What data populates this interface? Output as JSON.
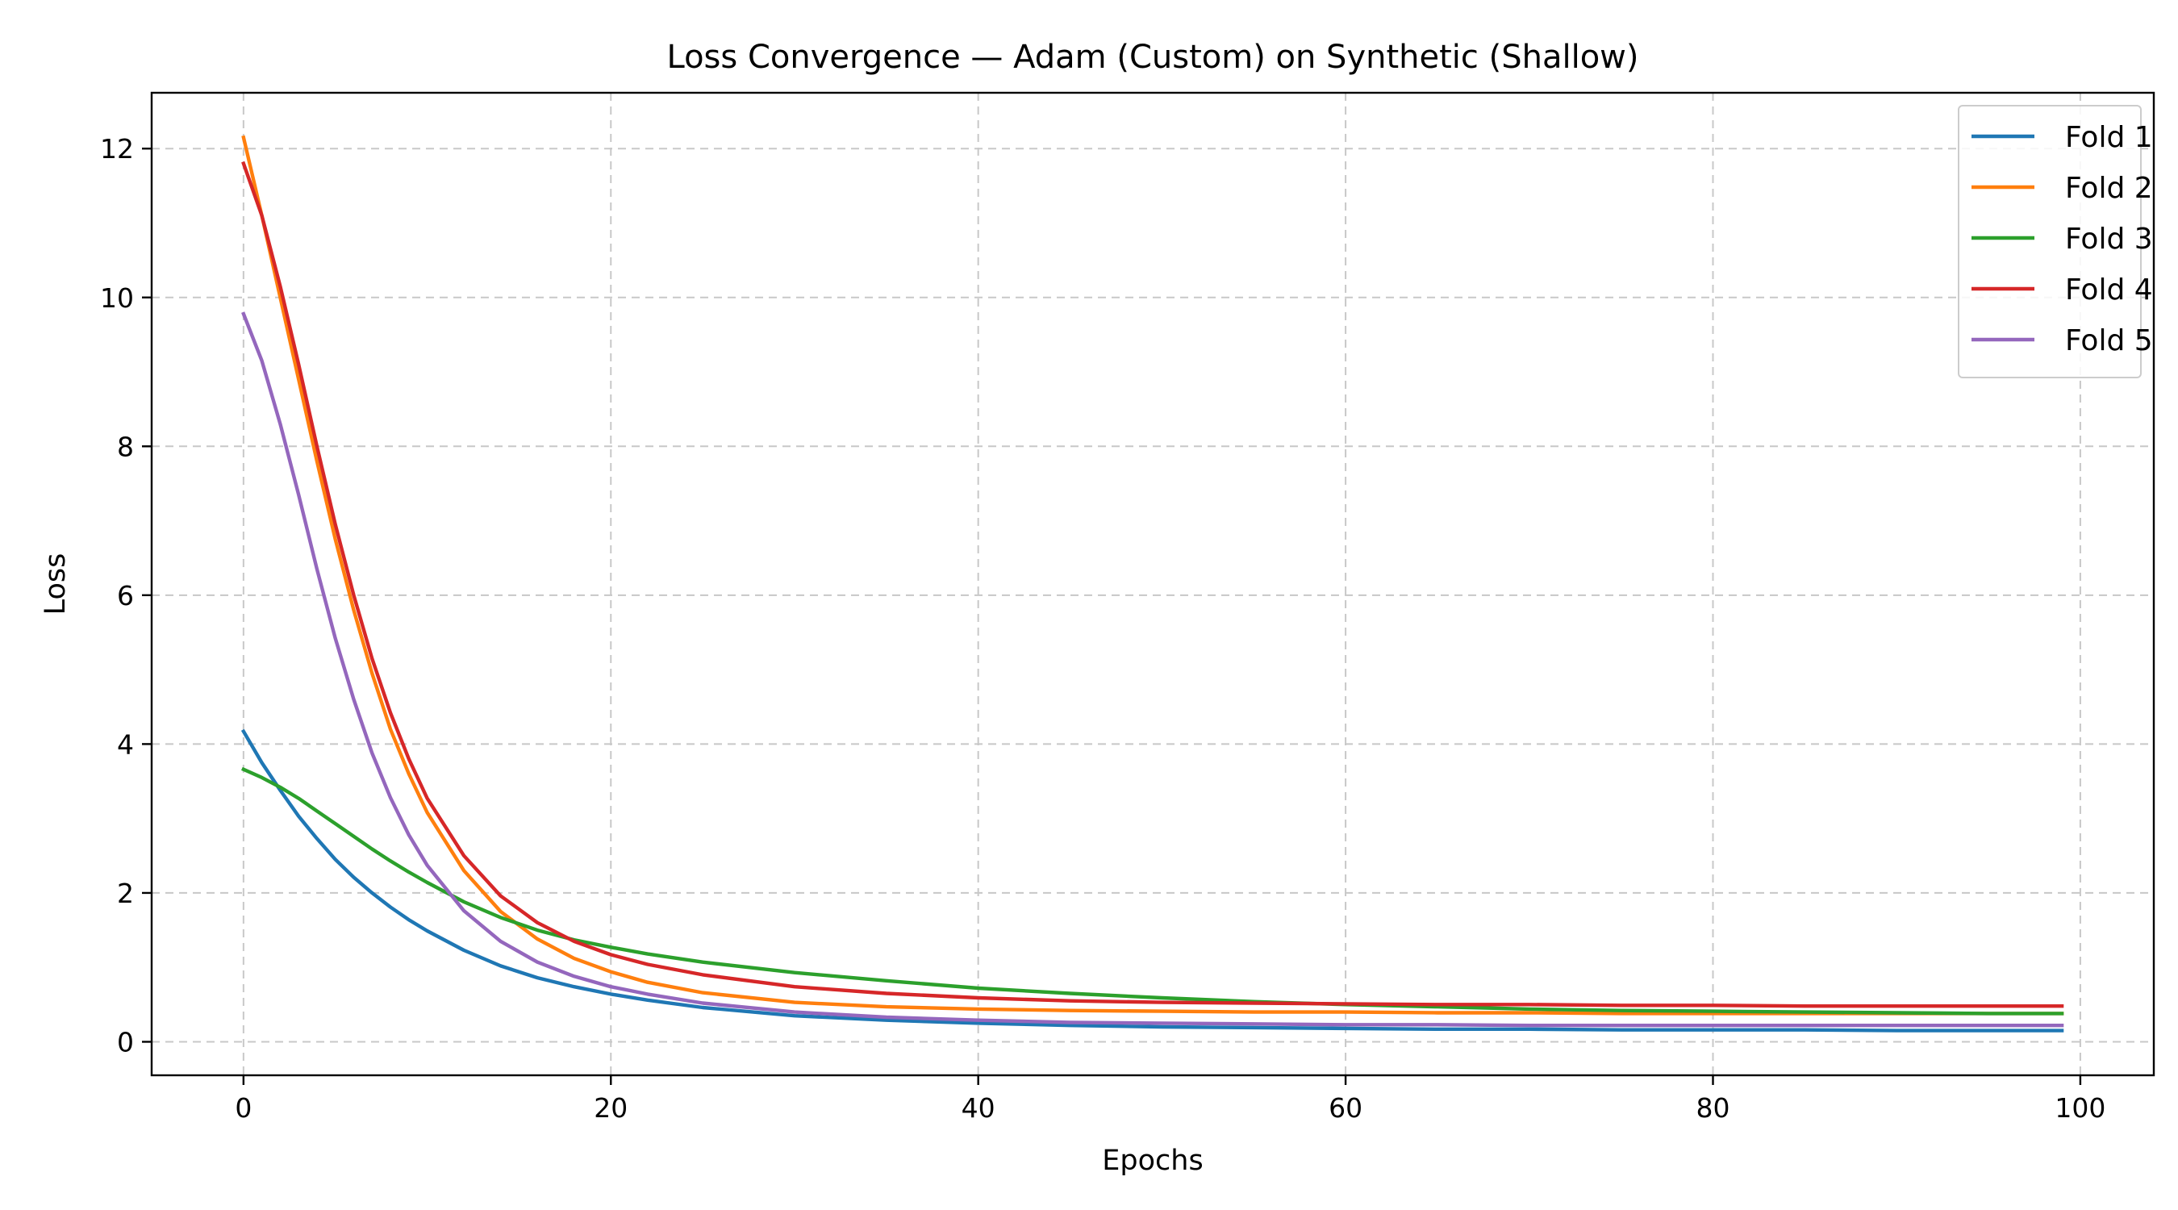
{
  "chart_data": {
    "type": "line",
    "title": "Loss Convergence — Adam (Custom) on Synthetic (Shallow)",
    "xlabel": "Epochs",
    "ylabel": "Loss",
    "xlim": [
      -5,
      104
    ],
    "ylim": [
      -0.45,
      12.75
    ],
    "xticks": [
      0,
      20,
      40,
      60,
      80,
      100
    ],
    "yticks": [
      0,
      2,
      4,
      6,
      8,
      10,
      12
    ],
    "grid": true,
    "legend_position": "top-right",
    "x": [
      0,
      1,
      2,
      3,
      4,
      5,
      6,
      7,
      8,
      9,
      10,
      12,
      14,
      16,
      18,
      20,
      22,
      25,
      30,
      35,
      40,
      45,
      50,
      55,
      60,
      65,
      70,
      75,
      80,
      85,
      90,
      95,
      99
    ],
    "series": [
      {
        "name": "Fold 1",
        "color": "#1f77b4",
        "values": [
          4.17,
          3.75,
          3.38,
          3.03,
          2.73,
          2.45,
          2.21,
          2.0,
          1.81,
          1.64,
          1.49,
          1.23,
          1.02,
          0.86,
          0.74,
          0.64,
          0.56,
          0.46,
          0.35,
          0.29,
          0.25,
          0.22,
          0.2,
          0.19,
          0.18,
          0.17,
          0.17,
          0.16,
          0.16,
          0.16,
          0.15,
          0.15,
          0.15
        ]
      },
      {
        "name": "Fold 2",
        "color": "#ff7f0e",
        "values": [
          12.15,
          11.1,
          10.0,
          8.9,
          7.8,
          6.75,
          5.8,
          4.95,
          4.2,
          3.6,
          3.08,
          2.3,
          1.75,
          1.38,
          1.12,
          0.94,
          0.8,
          0.66,
          0.53,
          0.47,
          0.44,
          0.42,
          0.41,
          0.4,
          0.4,
          0.39,
          0.39,
          0.38,
          0.38,
          0.38,
          0.38,
          0.38,
          0.38
        ]
      },
      {
        "name": "Fold 3",
        "color": "#2ca02c",
        "values": [
          3.66,
          3.55,
          3.42,
          3.27,
          3.1,
          2.93,
          2.76,
          2.59,
          2.43,
          2.28,
          2.14,
          1.88,
          1.67,
          1.5,
          1.37,
          1.27,
          1.18,
          1.07,
          0.93,
          0.82,
          0.72,
          0.65,
          0.59,
          0.54,
          0.5,
          0.47,
          0.44,
          0.42,
          0.41,
          0.4,
          0.39,
          0.38,
          0.38
        ]
      },
      {
        "name": "Fold 4",
        "color": "#d62728",
        "values": [
          11.8,
          11.1,
          10.15,
          9.1,
          8.0,
          6.95,
          6.0,
          5.15,
          4.42,
          3.8,
          3.27,
          2.5,
          1.96,
          1.6,
          1.35,
          1.17,
          1.04,
          0.9,
          0.74,
          0.65,
          0.59,
          0.55,
          0.53,
          0.52,
          0.51,
          0.5,
          0.5,
          0.49,
          0.49,
          0.48,
          0.48,
          0.48,
          0.48
        ]
      },
      {
        "name": "Fold 5",
        "color": "#9467bd",
        "values": [
          9.78,
          9.15,
          8.3,
          7.35,
          6.35,
          5.42,
          4.6,
          3.88,
          3.28,
          2.78,
          2.37,
          1.76,
          1.35,
          1.07,
          0.88,
          0.74,
          0.64,
          0.52,
          0.4,
          0.33,
          0.29,
          0.26,
          0.25,
          0.24,
          0.23,
          0.23,
          0.22,
          0.22,
          0.22,
          0.22,
          0.22,
          0.22,
          0.22
        ]
      }
    ]
  }
}
